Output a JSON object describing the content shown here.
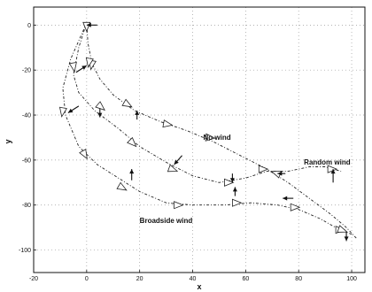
{
  "chart_data": {
    "type": "line",
    "title": "",
    "xlabel": "x",
    "ylabel": "y",
    "xlim": [
      -20,
      105
    ],
    "ylim": [
      -110,
      8
    ],
    "xticks": [
      -20,
      0,
      20,
      40,
      60,
      80,
      100
    ],
    "yticks": [
      0,
      -20,
      -40,
      -60,
      -80,
      -100
    ],
    "grid": true,
    "legend": "none",
    "annotations": [
      {
        "text": "No wind",
        "x": 44,
        "y": -51
      },
      {
        "text": "Random wind",
        "x": 82,
        "y": -62
      },
      {
        "text": "Broadside wind",
        "x": 20,
        "y": -88
      }
    ],
    "series": [
      {
        "x": [
          0,
          0.5,
          2,
          5,
          10,
          18,
          28,
          38,
          48,
          58,
          68,
          76,
          84,
          92,
          98,
          102
        ],
        "y": [
          1,
          -8,
          -17,
          -24,
          -31,
          -38,
          -43,
          -47,
          -52,
          -58,
          -64,
          -70,
          -77,
          -84,
          -90,
          -95
        ],
        "markers": [
          {
            "x": 0,
            "y": 0,
            "angle": 90
          },
          {
            "x": 2,
            "y": -17,
            "angle": 100
          },
          {
            "x": 15,
            "y": -35,
            "angle": 30
          },
          {
            "x": 30,
            "y": -44,
            "angle": 10
          },
          {
            "x": 46,
            "y": -50,
            "angle": 5
          },
          {
            "x": 66,
            "y": -64,
            "angle": 0
          },
          {
            "x": 95,
            "y": -91,
            "angle": 0
          }
        ]
      },
      {
        "x": [
          0,
          -3,
          -5,
          -3,
          3,
          12,
          20,
          30,
          40,
          50,
          60,
          68,
          76,
          84,
          90,
          96
        ],
        "y": [
          1,
          -10,
          -22,
          -30,
          -38,
          -46,
          -54,
          -61,
          -67,
          -70,
          -68,
          -65,
          -65,
          -63,
          -63,
          -65
        ],
        "markers": [
          {
            "x": -5,
            "y": -18,
            "angle": 80
          },
          {
            "x": 5,
            "y": -36,
            "angle": 40
          },
          {
            "x": 17,
            "y": -52,
            "angle": 45
          },
          {
            "x": 32,
            "y": -64,
            "angle": 20
          },
          {
            "x": 53,
            "y": -70,
            "angle": 0
          },
          {
            "x": 72,
            "y": -66,
            "angle": 200
          },
          {
            "x": 92,
            "y": -64,
            "angle": 0
          }
        ]
      },
      {
        "x": [
          0,
          -6,
          -9,
          -8,
          -3,
          4,
          12,
          20,
          30,
          40,
          52,
          62,
          72,
          80,
          88,
          94,
          100
        ],
        "y": [
          1,
          -15,
          -28,
          -40,
          -54,
          -62,
          -68,
          -74,
          -79,
          -80,
          -80,
          -79,
          -80,
          -82,
          -86,
          -90,
          -93
        ],
        "markers": [
          {
            "x": 1,
            "y": -16,
            "angle": 100
          },
          {
            "x": -9,
            "y": -38,
            "angle": 100
          },
          {
            "x": -1,
            "y": -57,
            "angle": 60
          },
          {
            "x": 13,
            "y": -72,
            "angle": 30
          },
          {
            "x": 34,
            "y": -80,
            "angle": 0
          },
          {
            "x": 56,
            "y": -79,
            "angle": 0
          },
          {
            "x": 78,
            "y": -81,
            "angle": 0
          },
          {
            "x": 96,
            "y": -91,
            "angle": 20
          }
        ]
      }
    ],
    "wind_arrows": [
      {
        "x": 4,
        "y": 0,
        "dx": -4,
        "dy": 0
      },
      {
        "x": -4,
        "y": -21,
        "dx": 4,
        "dy": 3
      },
      {
        "x": -3,
        "y": -36,
        "dx": -4,
        "dy": -3
      },
      {
        "x": 5,
        "y": -37,
        "dx": 0,
        "dy": -4
      },
      {
        "x": 19,
        "y": -42,
        "dx": 0,
        "dy": 4
      },
      {
        "x": 36,
        "y": -58,
        "dx": -3,
        "dy": -4
      },
      {
        "x": 17,
        "y": -69,
        "dx": 0,
        "dy": 5
      },
      {
        "x": 55,
        "y": -66,
        "dx": 0,
        "dy": -4
      },
      {
        "x": 56,
        "y": -76,
        "dx": 0,
        "dy": 4
      },
      {
        "x": 75,
        "y": -66,
        "dx": -3,
        "dy": 0
      },
      {
        "x": 93,
        "y": -70,
        "dx": 0,
        "dy": 6
      },
      {
        "x": 78,
        "y": -77,
        "dx": -4,
        "dy": 0
      },
      {
        "x": 98,
        "y": -92,
        "dx": 0,
        "dy": -4
      }
    ]
  }
}
